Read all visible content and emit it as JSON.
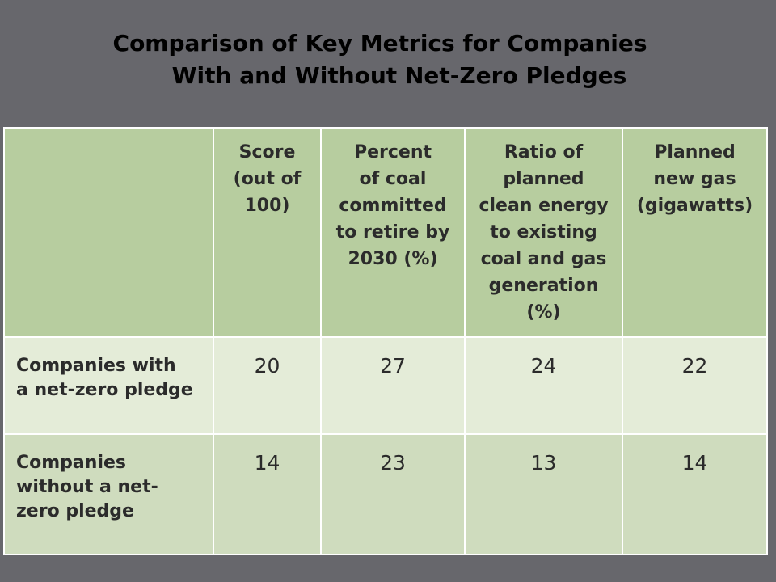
{
  "slide": {
    "title_line1": "Comparison of Key Metrics for Companies",
    "title_line2": "With and Without Net-Zero Pledges"
  },
  "chart_data": {
    "type": "table",
    "title": "Comparison of Key Metrics for Companies With and Without Net-Zero Pledges",
    "columns": [
      "",
      "Score\n(out of\n100)",
      "Percent\nof coal\ncommitted\nto retire by\n2030 (%)",
      "Ratio of\nplanned\nclean energy\nto existing\ncoal and gas\ngeneration\n(%)",
      "Planned\nnew gas\n(gigawatts)"
    ],
    "rows": [
      {
        "label": "Companies with\na net-zero pledge",
        "values": [
          "20",
          "27",
          "24",
          "22"
        ]
      },
      {
        "label": "Companies\nwithout a net-\nzero pledge",
        "values": [
          "14",
          "23",
          "13",
          "14"
        ]
      }
    ]
  },
  "colors": {
    "background": "#67676c",
    "header_fill": "#b7cd9f",
    "row1_fill": "#e4ecd8",
    "row2_fill": "#cfdcbe",
    "grid_lines": "#ffffff"
  }
}
